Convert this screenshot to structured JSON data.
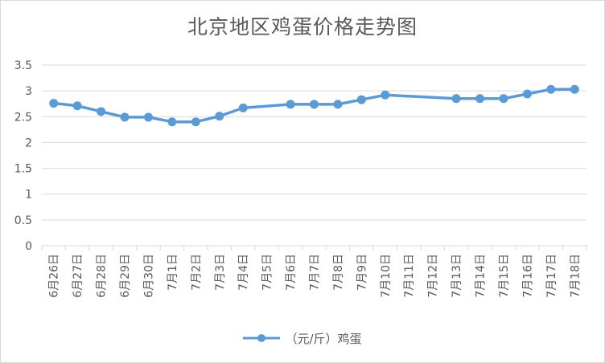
{
  "chart_data": {
    "type": "line",
    "title": "北京地区鸡蛋价格走势图",
    "categories": [
      "6月26日",
      "6月27日",
      "6月28日",
      "6月29日",
      "6月30日",
      "7月1日",
      "7月2日",
      "7月3日",
      "7月4日",
      "7月5日",
      "7月6日",
      "7月7日",
      "7月8日",
      "7月9日",
      "7月10日",
      "7月11日",
      "7月12日",
      "7月13日",
      "7月14日",
      "7月15日",
      "7月16日",
      "7月17日",
      "7月18日"
    ],
    "series": [
      {
        "name": "（元/斤）鸡蛋",
        "values": [
          2.76,
          2.71,
          2.6,
          2.49,
          2.49,
          2.4,
          2.4,
          2.51,
          2.67,
          null,
          2.74,
          2.74,
          2.74,
          2.83,
          2.92,
          null,
          null,
          2.85,
          2.85,
          2.85,
          2.94,
          3.03,
          3.03
        ],
        "color": "#5b9bd5"
      }
    ],
    "ylim": [
      0,
      3.5
    ],
    "yticks": [
      "0",
      "0.5",
      "1",
      "1.5",
      "2",
      "2.5",
      "3",
      "3.5"
    ],
    "xlabel": "",
    "ylabel": "",
    "grid": true,
    "legend": "bottom"
  }
}
